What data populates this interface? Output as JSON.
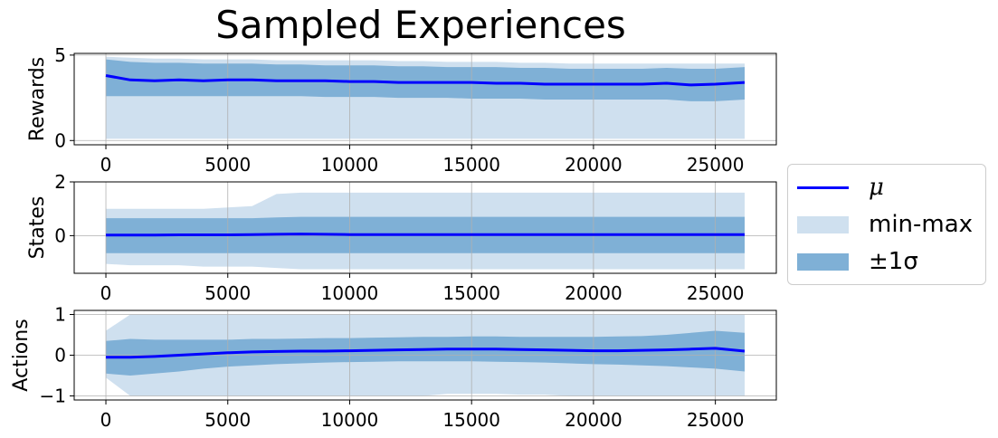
{
  "title": "Sampled Experiences",
  "colors": {
    "mean": "#0000ff",
    "minmax": "#cfe0ef",
    "std": "#7fb0d6",
    "grid": "#b0b0b0"
  },
  "legend": {
    "mean_label": "μ",
    "minmax_label": "min-max",
    "std_label": "±1σ"
  },
  "chart_data": [
    {
      "type": "area",
      "ylabel": "Rewards",
      "xlim": [
        -1300,
        27500
      ],
      "ylim": [
        -0.25,
        5.1
      ],
      "xticks": [
        0,
        5000,
        10000,
        15000,
        20000,
        25000
      ],
      "yticks": [
        0,
        5
      ],
      "grid": true,
      "x": [
        0,
        1000,
        2000,
        3000,
        4000,
        5000,
        6000,
        7000,
        8000,
        9000,
        10000,
        11000,
        12000,
        13000,
        14000,
        15000,
        16000,
        17000,
        18000,
        19000,
        20000,
        21000,
        22000,
        23000,
        24000,
        25000,
        26200
      ],
      "series": [
        {
          "name": "μ",
          "values": [
            3.8,
            3.55,
            3.5,
            3.55,
            3.5,
            3.55,
            3.55,
            3.5,
            3.5,
            3.5,
            3.45,
            3.45,
            3.4,
            3.4,
            3.4,
            3.4,
            3.35,
            3.35,
            3.3,
            3.3,
            3.3,
            3.3,
            3.3,
            3.35,
            3.25,
            3.3,
            3.4
          ]
        },
        {
          "name": "min",
          "values": [
            0.1,
            0.1,
            0.1,
            0.1,
            0.1,
            0.1,
            0.1,
            0.1,
            0.1,
            0.1,
            0.1,
            0.1,
            0.1,
            0.1,
            0.1,
            0.1,
            0.1,
            0.1,
            0.1,
            0.1,
            0.1,
            0.1,
            0.1,
            0.1,
            0.1,
            0.1,
            0.1
          ]
        },
        {
          "name": "max",
          "values": [
            4.9,
            4.85,
            4.8,
            4.8,
            4.75,
            4.75,
            4.75,
            4.7,
            4.7,
            4.7,
            4.7,
            4.7,
            4.65,
            4.65,
            4.6,
            4.6,
            4.6,
            4.55,
            4.55,
            4.5,
            4.5,
            4.5,
            4.5,
            4.5,
            4.5,
            4.5,
            4.5
          ]
        },
        {
          "name": "std_low",
          "values": [
            2.6,
            2.6,
            2.6,
            2.6,
            2.6,
            2.6,
            2.6,
            2.6,
            2.6,
            2.55,
            2.55,
            2.55,
            2.5,
            2.5,
            2.5,
            2.45,
            2.45,
            2.45,
            2.4,
            2.4,
            2.4,
            2.4,
            2.4,
            2.4,
            2.3,
            2.3,
            2.4
          ]
        },
        {
          "name": "std_high",
          "values": [
            4.75,
            4.6,
            4.55,
            4.55,
            4.5,
            4.5,
            4.5,
            4.45,
            4.45,
            4.4,
            4.4,
            4.4,
            4.35,
            4.35,
            4.3,
            4.3,
            4.3,
            4.25,
            4.25,
            4.2,
            4.2,
            4.2,
            4.2,
            4.25,
            4.2,
            4.2,
            4.3
          ]
        }
      ]
    },
    {
      "type": "area",
      "ylabel": "States",
      "xlim": [
        -1300,
        27500
      ],
      "ylim": [
        -1.4,
        2.0
      ],
      "xticks": [
        0,
        5000,
        10000,
        15000,
        20000,
        25000
      ],
      "yticks": [
        0,
        2
      ],
      "grid": true,
      "x": [
        0,
        1000,
        2000,
        3000,
        4000,
        5000,
        6000,
        7000,
        8000,
        9000,
        10000,
        11000,
        12000,
        13000,
        14000,
        15000,
        16000,
        17000,
        18000,
        19000,
        20000,
        21000,
        22000,
        23000,
        24000,
        25000,
        26200
      ],
      "series": [
        {
          "name": "μ",
          "values": [
            0.02,
            0.02,
            0.02,
            0.03,
            0.03,
            0.03,
            0.04,
            0.05,
            0.06,
            0.05,
            0.04,
            0.04,
            0.04,
            0.04,
            0.04,
            0.04,
            0.04,
            0.04,
            0.04,
            0.04,
            0.04,
            0.04,
            0.04,
            0.04,
            0.04,
            0.04,
            0.04
          ]
        },
        {
          "name": "min",
          "values": [
            -1.05,
            -1.1,
            -1.1,
            -1.1,
            -1.15,
            -1.15,
            -1.15,
            -1.2,
            -1.25,
            -1.25,
            -1.25,
            -1.25,
            -1.25,
            -1.25,
            -1.25,
            -1.25,
            -1.25,
            -1.25,
            -1.25,
            -1.25,
            -1.25,
            -1.25,
            -1.25,
            -1.25,
            -1.25,
            -1.25,
            -1.25
          ]
        },
        {
          "name": "max",
          "values": [
            1.0,
            1.0,
            1.0,
            1.0,
            1.0,
            1.05,
            1.1,
            1.55,
            1.6,
            1.6,
            1.6,
            1.6,
            1.6,
            1.6,
            1.6,
            1.6,
            1.6,
            1.6,
            1.6,
            1.6,
            1.6,
            1.6,
            1.6,
            1.6,
            1.6,
            1.6,
            1.6
          ]
        },
        {
          "name": "std_low",
          "values": [
            -0.65,
            -0.65,
            -0.65,
            -0.65,
            -0.65,
            -0.65,
            -0.65,
            -0.65,
            -0.65,
            -0.65,
            -0.65,
            -0.65,
            -0.65,
            -0.65,
            -0.65,
            -0.65,
            -0.65,
            -0.65,
            -0.65,
            -0.65,
            -0.65,
            -0.65,
            -0.65,
            -0.65,
            -0.65,
            -0.65,
            -0.65
          ]
        },
        {
          "name": "std_high",
          "values": [
            0.65,
            0.65,
            0.65,
            0.65,
            0.65,
            0.65,
            0.65,
            0.68,
            0.7,
            0.7,
            0.7,
            0.7,
            0.7,
            0.7,
            0.7,
            0.7,
            0.7,
            0.7,
            0.7,
            0.7,
            0.7,
            0.7,
            0.7,
            0.7,
            0.7,
            0.7,
            0.7
          ]
        }
      ]
    },
    {
      "type": "area",
      "ylabel": "Actions",
      "xlim": [
        -1300,
        27500
      ],
      "ylim": [
        -1.1,
        1.1
      ],
      "xticks": [
        0,
        5000,
        10000,
        15000,
        20000,
        25000
      ],
      "yticks": [
        -1,
        0,
        1
      ],
      "grid": true,
      "x": [
        0,
        1000,
        2000,
        3000,
        4000,
        5000,
        6000,
        7000,
        8000,
        9000,
        10000,
        11000,
        12000,
        13000,
        14000,
        15000,
        16000,
        17000,
        18000,
        19000,
        20000,
        21000,
        22000,
        23000,
        24000,
        25000,
        26200
      ],
      "series": [
        {
          "name": "μ",
          "values": [
            -0.05,
            -0.05,
            -0.03,
            0.0,
            0.03,
            0.06,
            0.08,
            0.09,
            0.1,
            0.1,
            0.11,
            0.12,
            0.13,
            0.14,
            0.15,
            0.15,
            0.15,
            0.14,
            0.13,
            0.12,
            0.11,
            0.11,
            0.12,
            0.13,
            0.15,
            0.17,
            0.1
          ]
        },
        {
          "name": "min",
          "values": [
            -0.55,
            -1.0,
            -1.0,
            -1.0,
            -1.0,
            -1.0,
            -1.0,
            -1.0,
            -1.0,
            -1.0,
            -1.0,
            -1.0,
            -1.0,
            -1.0,
            -0.95,
            -0.95,
            -0.95,
            -0.97,
            -0.97,
            -1.0,
            -1.0,
            -1.0,
            -1.0,
            -1.0,
            -1.0,
            -1.0,
            -1.0
          ]
        },
        {
          "name": "max",
          "values": [
            0.6,
            1.0,
            1.0,
            1.0,
            1.0,
            1.0,
            1.0,
            1.0,
            1.0,
            1.0,
            1.0,
            1.0,
            1.0,
            1.0,
            1.0,
            1.0,
            1.0,
            1.0,
            1.0,
            1.0,
            1.0,
            1.0,
            1.0,
            1.0,
            1.0,
            1.0,
            1.0
          ]
        },
        {
          "name": "std_low",
          "values": [
            -0.45,
            -0.5,
            -0.45,
            -0.4,
            -0.33,
            -0.28,
            -0.25,
            -0.22,
            -0.2,
            -0.18,
            -0.17,
            -0.16,
            -0.15,
            -0.15,
            -0.15,
            -0.15,
            -0.16,
            -0.17,
            -0.18,
            -0.2,
            -0.22,
            -0.23,
            -0.25,
            -0.27,
            -0.3,
            -0.33,
            -0.4
          ]
        },
        {
          "name": "std_high",
          "values": [
            0.35,
            0.4,
            0.38,
            0.38,
            0.38,
            0.38,
            0.4,
            0.4,
            0.41,
            0.42,
            0.42,
            0.43,
            0.44,
            0.45,
            0.45,
            0.46,
            0.46,
            0.45,
            0.45,
            0.45,
            0.45,
            0.46,
            0.47,
            0.5,
            0.55,
            0.6,
            0.55
          ]
        }
      ]
    }
  ]
}
